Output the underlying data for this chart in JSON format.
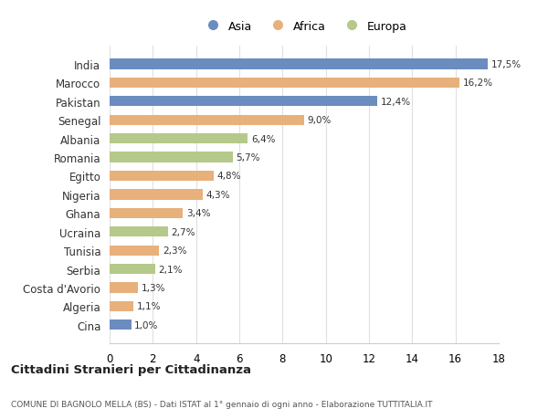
{
  "categories": [
    "India",
    "Marocco",
    "Pakistan",
    "Senegal",
    "Albania",
    "Romania",
    "Egitto",
    "Nigeria",
    "Ghana",
    "Ucraina",
    "Tunisia",
    "Serbia",
    "Costa d'Avorio",
    "Algeria",
    "Cina"
  ],
  "values": [
    17.5,
    16.2,
    12.4,
    9.0,
    6.4,
    5.7,
    4.8,
    4.3,
    3.4,
    2.7,
    2.3,
    2.1,
    1.3,
    1.1,
    1.0
  ],
  "labels": [
    "17,5%",
    "16,2%",
    "12,4%",
    "9,0%",
    "6,4%",
    "5,7%",
    "4,8%",
    "4,3%",
    "3,4%",
    "2,7%",
    "2,3%",
    "2,1%",
    "1,3%",
    "1,1%",
    "1,0%"
  ],
  "continents": [
    "Asia",
    "Africa",
    "Asia",
    "Africa",
    "Europa",
    "Europa",
    "Africa",
    "Africa",
    "Africa",
    "Europa",
    "Africa",
    "Europa",
    "Africa",
    "Africa",
    "Asia"
  ],
  "colors": {
    "Asia": "#6b8cbf",
    "Africa": "#e8b07a",
    "Europa": "#b5c98a"
  },
  "legend_labels": [
    "Asia",
    "Africa",
    "Europa"
  ],
  "xlim": [
    0,
    18
  ],
  "xticks": [
    0,
    2,
    4,
    6,
    8,
    10,
    12,
    14,
    16,
    18
  ],
  "title": "Cittadini Stranieri per Cittadinanza",
  "subtitle": "COMUNE DI BAGNOLO MELLA (BS) - Dati ISTAT al 1° gennaio di ogni anno - Elaborazione TUTTITALIA.IT",
  "background_color": "#ffffff",
  "grid_color": "#e0e0e0"
}
